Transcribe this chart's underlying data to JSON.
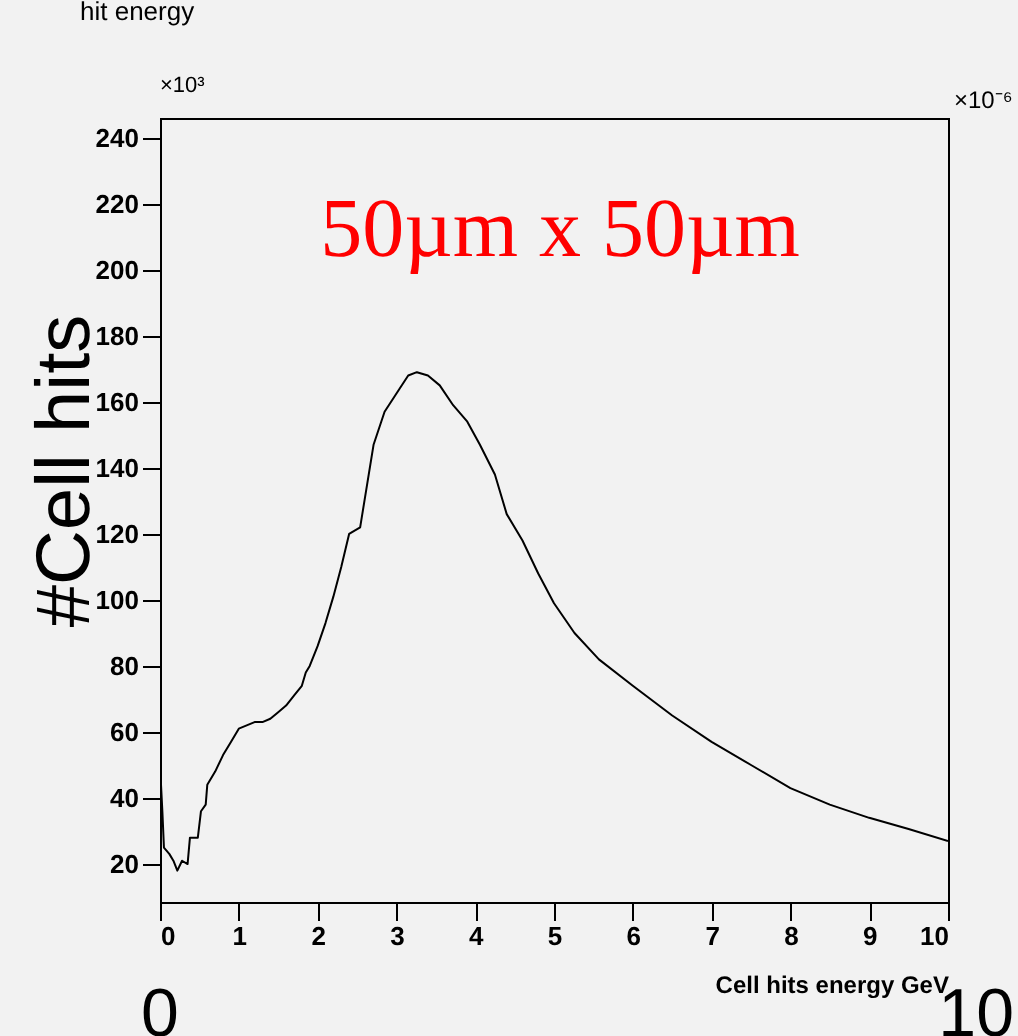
{
  "chart_data": {
    "type": "line",
    "title": "hit energy",
    "xlabel": "Cell hits energy GeV",
    "ylabel": "#Cell hits",
    "annotations": [
      "50µm x 50µm",
      "×10³",
      "×10⁻⁶",
      "0",
      "10"
    ],
    "series": [
      {
        "color": "#000000",
        "x": [
          0.0,
          0.03,
          0.05,
          0.12,
          0.17,
          0.22,
          0.28,
          0.35,
          0.38,
          0.48,
          0.52,
          0.58,
          0.6,
          0.7,
          0.8,
          0.9,
          1.0,
          1.1,
          1.2,
          1.3,
          1.4,
          1.5,
          1.6,
          1.7,
          1.8,
          1.85,
          1.9,
          2.0,
          2.1,
          2.2,
          2.3,
          2.4,
          2.54,
          2.71,
          2.85,
          3.04,
          3.15,
          3.26,
          3.4,
          3.55,
          3.72,
          3.9,
          4.06,
          4.25,
          4.4,
          4.6,
          4.8,
          5.0,
          5.26,
          5.57,
          6.0,
          6.5,
          7.0,
          7.5,
          8.0,
          8.5,
          9.0,
          9.5,
          10.0
        ],
        "values": [
          50,
          36,
          25,
          23,
          21,
          18,
          21,
          20,
          28,
          28,
          36,
          38,
          44,
          48,
          53,
          57,
          61,
          62,
          63,
          63,
          64,
          66,
          68,
          71,
          74,
          78,
          80,
          86,
          93,
          101,
          110,
          120,
          122,
          147,
          157,
          164,
          168,
          169,
          168,
          165,
          159,
          154,
          147,
          138,
          126,
          118,
          108,
          99,
          90,
          82,
          74,
          65,
          57,
          50,
          43,
          38,
          34,
          30.6,
          27
        ]
      }
    ],
    "xlim": [
      0,
      10
    ],
    "ylim": [
      8.5,
      246
    ],
    "xticks": [
      0,
      1,
      2,
      3,
      4,
      5,
      6,
      7,
      8,
      9,
      10
    ],
    "yticks": [
      20,
      40,
      60,
      80,
      100,
      120,
      140,
      160,
      180,
      200,
      220,
      240
    ],
    "grid": false,
    "legend": false
  }
}
